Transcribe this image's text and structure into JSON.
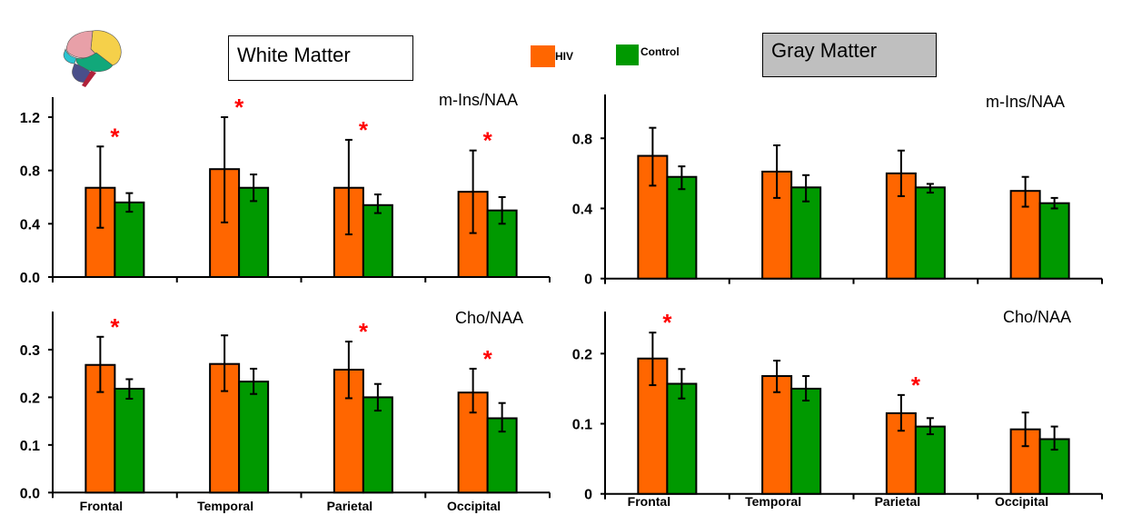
{
  "header": {
    "white_matter_label": "White Matter",
    "gray_matter_label": "Gray Matter",
    "brain_icon": "brain-illustration-icon"
  },
  "legend": [
    {
      "name": "HIV",
      "color": "#ff6600"
    },
    {
      "name": "Control",
      "color": "#009900"
    }
  ],
  "colors": {
    "hiv": "#ff6600",
    "control": "#009900",
    "significance": "#ff0000",
    "gm_box_bg": "#bfbfbf"
  },
  "chart_data": [
    {
      "id": "wm-mins",
      "type": "bar",
      "title": "m-Ins/NAA",
      "panel": "White Matter",
      "categories": [
        "Frontal",
        "Temporal",
        "Parietal",
        "Occipital"
      ],
      "show_category_labels": false,
      "ylim": [
        0,
        1.35
      ],
      "yticks": [
        0.0,
        0.4,
        0.8,
        1.2
      ],
      "ytick_labels": [
        "0.0",
        "0.4",
        "0.8",
        "1.2"
      ],
      "series": [
        {
          "name": "HIV",
          "values": [
            0.67,
            0.81,
            0.67,
            0.64
          ],
          "err_high": [
            0.98,
            1.2,
            1.03,
            0.95
          ],
          "err_low": [
            0.37,
            0.41,
            0.32,
            0.33
          ]
        },
        {
          "name": "Control",
          "values": [
            0.56,
            0.67,
            0.54,
            0.5
          ],
          "err_high": [
            0.63,
            0.77,
            0.62,
            0.6
          ],
          "err_low": [
            0.49,
            0.57,
            0.48,
            0.4
          ]
        }
      ],
      "significant": [
        true,
        true,
        true,
        true
      ]
    },
    {
      "id": "gm-mins",
      "type": "bar",
      "title": "m-Ins/NAA",
      "panel": "Gray Matter",
      "categories": [
        "Frontal",
        "Temporal",
        "Parietal",
        "Occipital"
      ],
      "show_category_labels": false,
      "ylim": [
        0,
        1.05
      ],
      "yticks": [
        0,
        0.4,
        0.8
      ],
      "ytick_labels": [
        "0",
        "0.4",
        "0.8"
      ],
      "series": [
        {
          "name": "HIV",
          "values": [
            0.7,
            0.61,
            0.6,
            0.5
          ],
          "err_high": [
            0.86,
            0.76,
            0.73,
            0.58
          ],
          "err_low": [
            0.53,
            0.46,
            0.47,
            0.41
          ]
        },
        {
          "name": "Control",
          "values": [
            0.58,
            0.52,
            0.52,
            0.43
          ],
          "err_high": [
            0.64,
            0.59,
            0.54,
            0.46
          ],
          "err_low": [
            0.51,
            0.44,
            0.49,
            0.4
          ]
        }
      ],
      "significant": [
        false,
        false,
        false,
        false
      ]
    },
    {
      "id": "wm-cho",
      "type": "bar",
      "title": "Cho/NAA",
      "panel": "White Matter",
      "categories": [
        "Frontal",
        "Temporal",
        "Parietal",
        "Occipital"
      ],
      "show_category_labels": true,
      "ylim": [
        0,
        0.38
      ],
      "yticks": [
        0.0,
        0.1,
        0.2,
        0.3
      ],
      "ytick_labels": [
        "0.0",
        "0.1",
        "0.2",
        "0.3"
      ],
      "series": [
        {
          "name": "HIV",
          "values": [
            0.268,
            0.27,
            0.258,
            0.21
          ],
          "err_high": [
            0.327,
            0.33,
            0.317,
            0.26
          ],
          "err_low": [
            0.211,
            0.213,
            0.198,
            0.168
          ]
        },
        {
          "name": "Control",
          "values": [
            0.218,
            0.233,
            0.2,
            0.156
          ],
          "err_high": [
            0.238,
            0.26,
            0.228,
            0.188
          ],
          "err_low": [
            0.197,
            0.207,
            0.172,
            0.128
          ]
        }
      ],
      "significant": [
        true,
        false,
        true,
        true
      ]
    },
    {
      "id": "gm-cho",
      "type": "bar",
      "title": "Cho/NAA",
      "panel": "Gray Matter",
      "categories": [
        "Frontal",
        "Temporal",
        "Parietal",
        "Occipital"
      ],
      "show_category_labels": true,
      "ylim": [
        0,
        0.26
      ],
      "yticks": [
        0,
        0.1,
        0.2
      ],
      "ytick_labels": [
        "0",
        "0.1",
        "0.2"
      ],
      "series": [
        {
          "name": "HIV",
          "values": [
            0.193,
            0.168,
            0.115,
            0.092
          ],
          "err_high": [
            0.23,
            0.19,
            0.141,
            0.116
          ],
          "err_low": [
            0.155,
            0.145,
            0.09,
            0.068
          ]
        },
        {
          "name": "Control",
          "values": [
            0.157,
            0.15,
            0.096,
            0.078
          ],
          "err_high": [
            0.178,
            0.168,
            0.108,
            0.096
          ],
          "err_low": [
            0.136,
            0.133,
            0.085,
            0.063
          ]
        }
      ],
      "significant": [
        true,
        false,
        true,
        false
      ]
    }
  ]
}
